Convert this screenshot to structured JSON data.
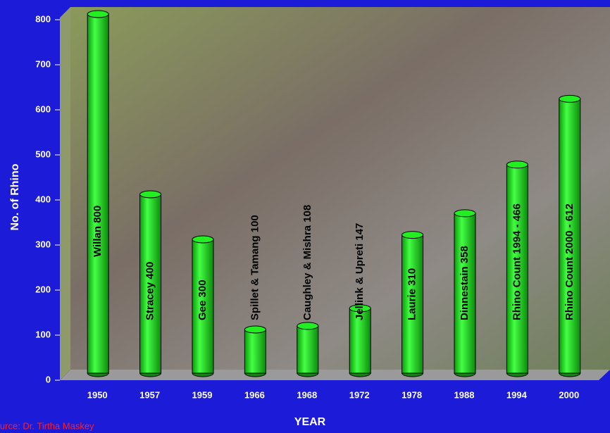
{
  "chart_data": {
    "type": "bar",
    "y_axis_label": "No. of Rhino",
    "x_axis_label": "YEAR",
    "source": "Source: Dr. Tirtha Maskey",
    "categories": [
      "1950",
      "1957",
      "1959",
      "1966",
      "1968",
      "1972",
      "1978",
      "1988",
      "1994",
      "2000"
    ],
    "values": [
      800,
      400,
      300,
      100,
      108,
      147,
      310,
      358,
      466,
      612
    ],
    "value_labels": [
      "Willan 800",
      "Stracey 400",
      "Gee 300",
      "Spillet & Tamang 100",
      "Caughley & Mishra 108",
      "Jellink & Upreti 147",
      "Laurie 310",
      "Dinnestain 358",
      "Rhino Count 1994 - 466",
      "Rhino Count 2000 - 612"
    ],
    "color": "#22ee22",
    "ylim": [
      0,
      800
    ],
    "yticks": [
      0,
      100,
      200,
      300,
      400,
      500,
      600,
      700,
      800
    ]
  }
}
